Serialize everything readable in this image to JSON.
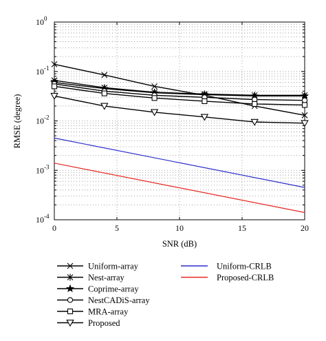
{
  "chart_data": {
    "type": "line",
    "title": "",
    "xlabel": "SNR (dB)",
    "ylabel": "RMSE (degree)",
    "xscale": "linear",
    "yscale": "log",
    "xlim": [
      0,
      20
    ],
    "ylim": [
      0.0001,
      1
    ],
    "grid": true,
    "legend_position": "bottom",
    "x_ticks": [
      {
        "value": 0,
        "label": "0"
      },
      {
        "value": 5,
        "label": "5"
      },
      {
        "value": 10,
        "label": "10"
      },
      {
        "value": 15,
        "label": "15"
      },
      {
        "value": 20,
        "label": "20"
      }
    ],
    "y_ticks": [
      {
        "value": 1,
        "base": "10",
        "exp": "0"
      },
      {
        "value": 0.1,
        "base": "10",
        "exp": "-1"
      },
      {
        "value": 0.01,
        "base": "10",
        "exp": "-2"
      },
      {
        "value": 0.001,
        "base": "10",
        "exp": "-3"
      },
      {
        "value": 0.0001,
        "base": "10",
        "exp": "-4"
      }
    ],
    "series": [
      {
        "name": "Uniform-array",
        "color": "#000000",
        "marker": "x",
        "x": [
          0,
          4,
          8,
          12,
          16,
          20
        ],
        "values": [
          0.14,
          0.085,
          0.05,
          0.033,
          0.02,
          0.013
        ]
      },
      {
        "name": "Nest-array",
        "color": "#000000",
        "marker": "asterisk",
        "x": [
          0,
          4,
          8,
          12,
          16,
          20
        ],
        "values": [
          0.066,
          0.047,
          0.038,
          0.035,
          0.033,
          0.033
        ]
      },
      {
        "name": "Coprime-array",
        "color": "#000000",
        "marker": "star",
        "x": [
          0,
          4,
          8,
          12,
          16,
          20
        ],
        "values": [
          0.06,
          0.045,
          0.037,
          0.034,
          0.032,
          0.032
        ]
      },
      {
        "name": "NestCADiS-array",
        "color": "#000000",
        "marker": "circle",
        "x": [
          0,
          4,
          8,
          12,
          16,
          20
        ],
        "values": [
          0.056,
          0.04,
          0.033,
          0.03,
          0.027,
          0.026
        ]
      },
      {
        "name": "MRA-array",
        "color": "#000000",
        "marker": "square",
        "x": [
          0,
          4,
          8,
          12,
          16,
          20
        ],
        "values": [
          0.05,
          0.036,
          0.029,
          0.025,
          0.022,
          0.021
        ]
      },
      {
        "name": "Proposed",
        "color": "#000000",
        "marker": "triangle-down",
        "x": [
          0,
          4,
          8,
          12,
          16,
          20
        ],
        "values": [
          0.032,
          0.02,
          0.015,
          0.012,
          0.0095,
          0.009
        ]
      },
      {
        "name": "Uniform-CRLB",
        "color": "#2b2bcc",
        "marker": "none",
        "x": [
          0,
          20
        ],
        "values": [
          0.0045,
          0.00045
        ]
      },
      {
        "name": "Proposed-CRLB",
        "color": "#e8251f",
        "marker": "none",
        "x": [
          0,
          20
        ],
        "values": [
          0.0014,
          0.00014
        ]
      }
    ]
  }
}
